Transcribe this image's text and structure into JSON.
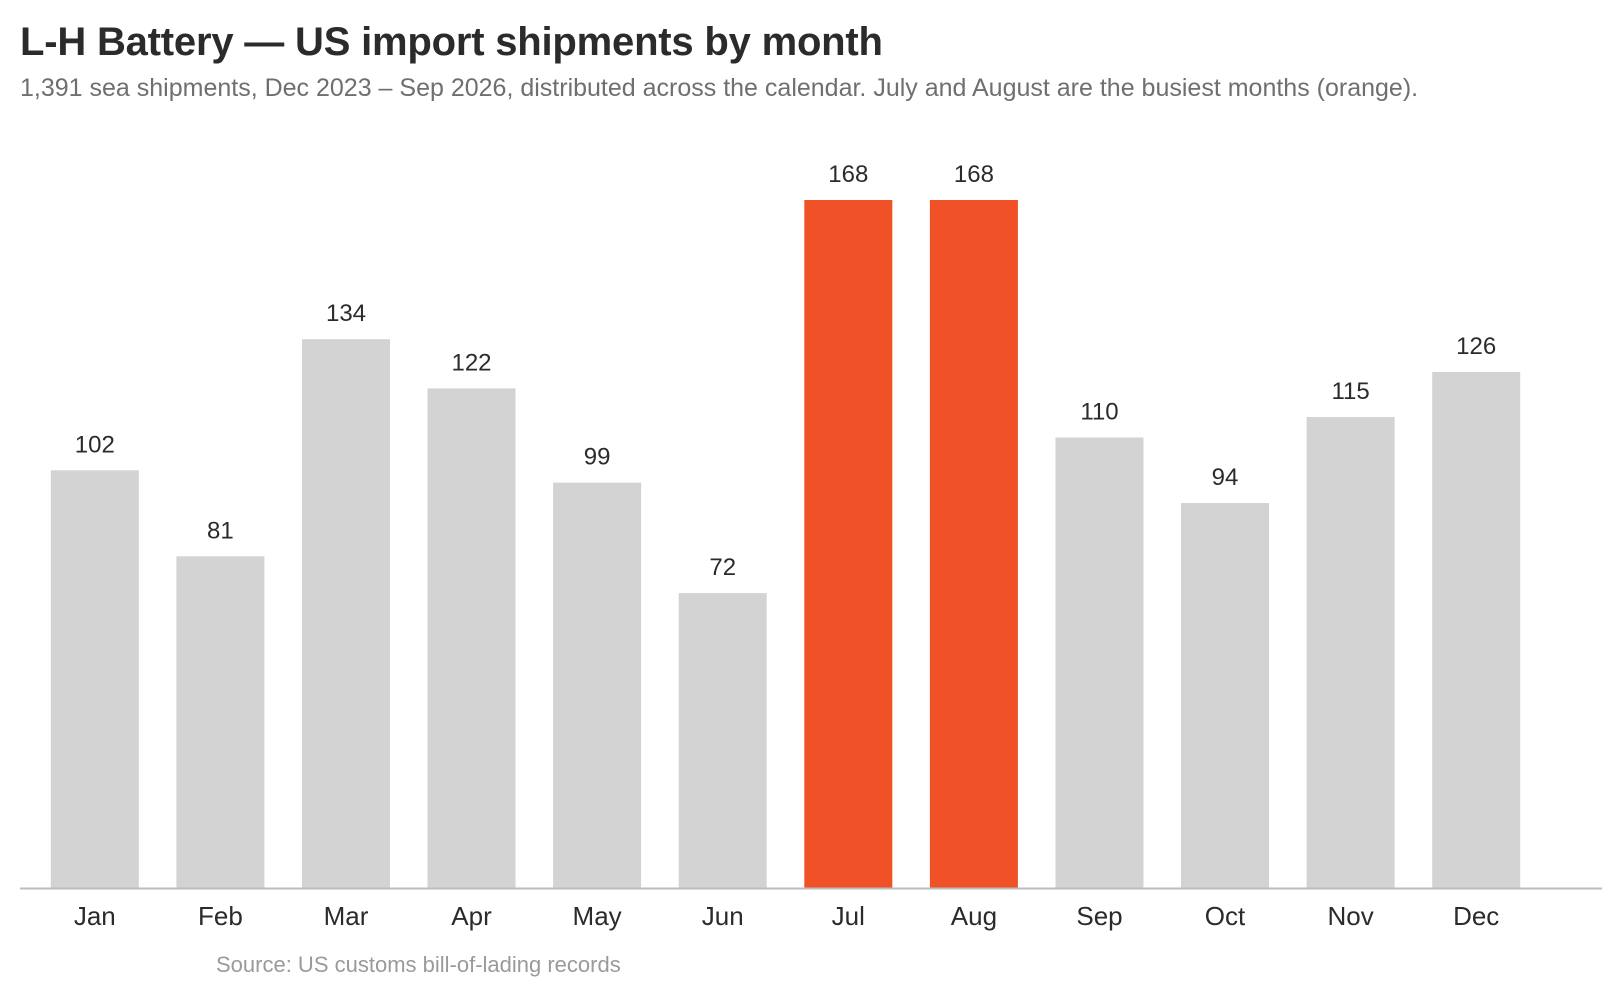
{
  "title": "L-H Battery — US import shipments by month",
  "subtitle": "1,391 sea shipments, Dec 2023 – Sep 2026, distributed across the calendar. July and August are the busiest months (orange).",
  "source": "Source: US customs bill-of-lading records",
  "colors": {
    "bar_default": "#d3d3d3",
    "bar_highlight": "#f05126",
    "axis": "#bdbdbd"
  },
  "chart_data": {
    "type": "bar",
    "categories": [
      "Jan",
      "Feb",
      "Mar",
      "Apr",
      "May",
      "Jun",
      "Jul",
      "Aug",
      "Sep",
      "Oct",
      "Nov",
      "Dec"
    ],
    "values": [
      102,
      81,
      134,
      122,
      99,
      72,
      168,
      168,
      110,
      94,
      115,
      126
    ],
    "value_labels": [
      "102",
      "81",
      "134",
      "122",
      "99",
      "72",
      "168",
      "168",
      "110",
      "94",
      "115",
      "126"
    ],
    "highlighted": [
      "Jul",
      "Aug"
    ],
    "ylim": [
      0,
      168
    ],
    "grid": false,
    "legend": "none"
  }
}
